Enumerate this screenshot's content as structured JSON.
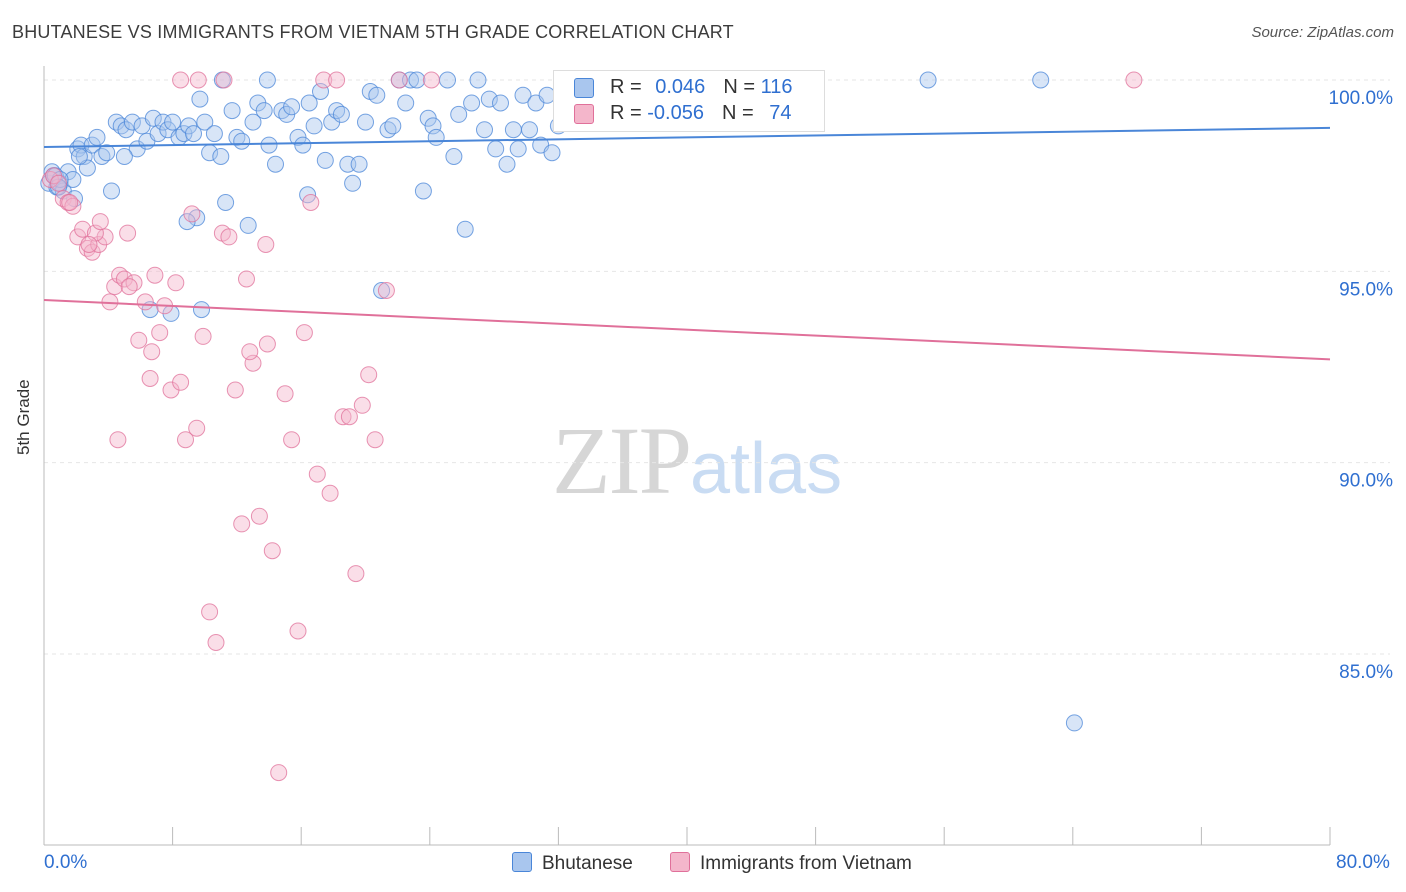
{
  "title": "BHUTANESE VS IMMIGRANTS FROM VIETNAM 5TH GRADE CORRELATION CHART",
  "source": "Source: ZipAtlas.com",
  "legend": {
    "row1": {
      "r_label": "R = ",
      "r_value": "0.046",
      "n_label": "N = ",
      "n_value": "116"
    },
    "row2": {
      "r_label": "R = ",
      "r_value": "-0.056",
      "n_label": "N = ",
      "n_value": "74"
    }
  },
  "bottom_legend": {
    "series1": "Bhutanese",
    "series2": "Immigrants from Vietnam"
  },
  "watermark": {
    "zip": "ZIP",
    "atlas": "atlas"
  },
  "colors": {
    "blue": "#4a86d8",
    "blue_fill": "#a9c6ee",
    "pink": "#e0709a",
    "pink_fill": "#f4b6cb",
    "axis_text": "#2f6fd0"
  },
  "chart_data": {
    "type": "scatter",
    "title": "BHUTANESE VS IMMIGRANTS FROM VIETNAM 5TH GRADE CORRELATION CHART",
    "xlabel": "",
    "ylabel": "5th Grade",
    "xlim": [
      0,
      80
    ],
    "ylim": [
      80.5,
      100.5
    ],
    "x_tick_labels": [
      "0.0%",
      "80.0%"
    ],
    "y_ticks": [
      85,
      90,
      95,
      100
    ],
    "y_tick_labels": [
      "85.0%",
      "90.0%",
      "95.0%",
      "100.0%"
    ],
    "grid": true,
    "series": [
      {
        "name": "Bhutanese",
        "color": "#4a86d8",
        "trend": {
          "x": [
            0,
            80
          ],
          "y": [
            98.25,
            98.75
          ]
        },
        "points": [
          [
            0.3,
            97.3
          ],
          [
            0.5,
            97.6
          ],
          [
            0.6,
            97.5
          ],
          [
            0.8,
            97.2
          ],
          [
            1.0,
            97.3
          ],
          [
            1.2,
            97.1
          ],
          [
            1.5,
            97.6
          ],
          [
            1.8,
            97.4
          ],
          [
            2.1,
            98.2
          ],
          [
            2.3,
            98.3
          ],
          [
            2.5,
            98.0
          ],
          [
            2.7,
            97.7
          ],
          [
            3.0,
            98.3
          ],
          [
            3.3,
            98.5
          ],
          [
            3.6,
            98.0
          ],
          [
            3.9,
            98.1
          ],
          [
            4.2,
            97.1
          ],
          [
            4.5,
            98.9
          ],
          [
            4.8,
            98.8
          ],
          [
            5.1,
            98.7
          ],
          [
            5.5,
            98.9
          ],
          [
            5.8,
            98.2
          ],
          [
            6.1,
            98.8
          ],
          [
            6.4,
            98.4
          ],
          [
            6.8,
            99.0
          ],
          [
            7.1,
            98.6
          ],
          [
            7.4,
            98.9
          ],
          [
            7.7,
            98.7
          ],
          [
            8.0,
            98.9
          ],
          [
            8.4,
            98.5
          ],
          [
            8.7,
            98.6
          ],
          [
            9.0,
            98.8
          ],
          [
            9.3,
            98.6
          ],
          [
            9.7,
            99.5
          ],
          [
            10.0,
            98.9
          ],
          [
            10.3,
            98.1
          ],
          [
            10.6,
            98.6
          ],
          [
            11.0,
            98.0
          ],
          [
            11.3,
            96.8
          ],
          [
            11.7,
            99.2
          ],
          [
            12.0,
            98.5
          ],
          [
            12.3,
            98.4
          ],
          [
            12.7,
            96.2
          ],
          [
            13.0,
            98.9
          ],
          [
            13.3,
            99.4
          ],
          [
            13.7,
            99.2
          ],
          [
            14.0,
            98.3
          ],
          [
            14.4,
            97.8
          ],
          [
            14.8,
            99.2
          ],
          [
            15.1,
            99.1
          ],
          [
            15.4,
            99.3
          ],
          [
            15.8,
            98.5
          ],
          [
            16.1,
            98.3
          ],
          [
            16.5,
            99.4
          ],
          [
            16.8,
            98.8
          ],
          [
            17.2,
            99.7
          ],
          [
            17.5,
            97.9
          ],
          [
            17.9,
            98.9
          ],
          [
            18.2,
            99.2
          ],
          [
            18.5,
            99.1
          ],
          [
            18.9,
            97.8
          ],
          [
            19.2,
            97.3
          ],
          [
            19.6,
            97.8
          ],
          [
            20.0,
            98.9
          ],
          [
            20.3,
            99.7
          ],
          [
            20.7,
            99.6
          ],
          [
            21.0,
            94.5
          ],
          [
            21.4,
            98.7
          ],
          [
            21.7,
            98.8
          ],
          [
            22.1,
            100.0
          ],
          [
            22.5,
            99.4
          ],
          [
            22.8,
            100.0
          ],
          [
            23.2,
            100.0
          ],
          [
            23.6,
            97.1
          ],
          [
            23.9,
            99.0
          ],
          [
            24.2,
            98.8
          ],
          [
            24.4,
            98.5
          ],
          [
            25.1,
            100.0
          ],
          [
            25.5,
            98.0
          ],
          [
            25.8,
            99.1
          ],
          [
            26.2,
            96.1
          ],
          [
            26.6,
            99.4
          ],
          [
            27.0,
            100.0
          ],
          [
            27.4,
            98.7
          ],
          [
            27.7,
            99.5
          ],
          [
            28.1,
            98.2
          ],
          [
            28.4,
            99.4
          ],
          [
            28.8,
            97.8
          ],
          [
            29.2,
            98.7
          ],
          [
            29.5,
            98.2
          ],
          [
            29.8,
            99.6
          ],
          [
            30.2,
            98.7
          ],
          [
            30.6,
            99.4
          ],
          [
            30.9,
            98.3
          ],
          [
            31.3,
            99.6
          ],
          [
            31.6,
            98.1
          ],
          [
            32.0,
            98.8
          ],
          [
            32.3,
            99.3
          ],
          [
            32.7,
            99.8
          ],
          [
            33.0,
            99.5
          ],
          [
            33.5,
            99.6
          ],
          [
            34.0,
            100.0
          ],
          [
            34.8,
            99.9
          ],
          [
            11.1,
            100.0
          ],
          [
            13.9,
            100.0
          ],
          [
            6.6,
            94.0
          ],
          [
            7.9,
            93.9
          ],
          [
            9.8,
            94.0
          ],
          [
            9.5,
            96.4
          ],
          [
            16.4,
            97.0
          ],
          [
            8.9,
            96.3
          ],
          [
            5.0,
            98.0
          ],
          [
            1.9,
            96.9
          ],
          [
            0.7,
            97.5
          ],
          [
            55.0,
            100.0
          ],
          [
            62.0,
            100.0
          ],
          [
            64.1,
            83.2
          ],
          [
            1.0,
            97.4
          ],
          [
            0.9,
            97.2
          ],
          [
            2.2,
            98.0
          ]
        ]
      },
      {
        "name": "Immigrants from Vietnam",
        "color": "#e0709a",
        "trend": {
          "x": [
            0,
            80
          ],
          "y": [
            94.25,
            92.7
          ]
        },
        "points": [
          [
            0.4,
            97.4
          ],
          [
            0.6,
            97.5
          ],
          [
            0.9,
            97.3
          ],
          [
            1.2,
            96.9
          ],
          [
            1.5,
            96.8
          ],
          [
            1.8,
            96.7
          ],
          [
            2.1,
            95.9
          ],
          [
            2.4,
            96.1
          ],
          [
            2.7,
            95.6
          ],
          [
            3.0,
            95.5
          ],
          [
            3.4,
            95.7
          ],
          [
            3.8,
            95.9
          ],
          [
            4.1,
            94.2
          ],
          [
            4.4,
            94.6
          ],
          [
            4.7,
            94.9
          ],
          [
            5.0,
            94.8
          ],
          [
            5.2,
            96.0
          ],
          [
            5.6,
            94.7
          ],
          [
            5.9,
            93.2
          ],
          [
            6.3,
            94.2
          ],
          [
            6.6,
            92.2
          ],
          [
            6.9,
            94.9
          ],
          [
            7.2,
            93.4
          ],
          [
            7.5,
            94.1
          ],
          [
            7.9,
            91.9
          ],
          [
            8.2,
            94.7
          ],
          [
            8.5,
            92.1
          ],
          [
            8.8,
            90.6
          ],
          [
            9.2,
            96.5
          ],
          [
            9.5,
            90.9
          ],
          [
            9.9,
            93.3
          ],
          [
            10.3,
            86.1
          ],
          [
            10.7,
            85.3
          ],
          [
            11.1,
            96.0
          ],
          [
            11.5,
            95.9
          ],
          [
            11.9,
            91.9
          ],
          [
            12.3,
            88.4
          ],
          [
            12.6,
            94.8
          ],
          [
            13.0,
            92.6
          ],
          [
            13.4,
            88.6
          ],
          [
            13.8,
            95.7
          ],
          [
            14.2,
            87.7
          ],
          [
            14.6,
            81.9
          ],
          [
            15.0,
            91.8
          ],
          [
            15.4,
            90.6
          ],
          [
            15.8,
            85.6
          ],
          [
            16.2,
            93.4
          ],
          [
            16.6,
            96.8
          ],
          [
            17.0,
            89.7
          ],
          [
            17.4,
            100.0
          ],
          [
            17.8,
            89.2
          ],
          [
            18.2,
            100.0
          ],
          [
            18.6,
            91.2
          ],
          [
            19.0,
            91.2
          ],
          [
            19.4,
            87.1
          ],
          [
            19.8,
            91.5
          ],
          [
            20.2,
            92.3
          ],
          [
            20.6,
            90.6
          ],
          [
            21.3,
            94.5
          ],
          [
            24.1,
            100.0
          ],
          [
            9.6,
            100.0
          ],
          [
            11.2,
            100.0
          ],
          [
            6.7,
            92.9
          ],
          [
            5.3,
            94.6
          ],
          [
            3.2,
            96.0
          ],
          [
            1.6,
            96.8
          ],
          [
            8.5,
            100.0
          ],
          [
            22.1,
            100.0
          ],
          [
            67.8,
            100.0
          ],
          [
            13.9,
            93.1
          ],
          [
            2.8,
            95.7
          ],
          [
            4.6,
            90.6
          ],
          [
            3.5,
            96.3
          ],
          [
            12.8,
            92.9
          ]
        ]
      }
    ]
  }
}
